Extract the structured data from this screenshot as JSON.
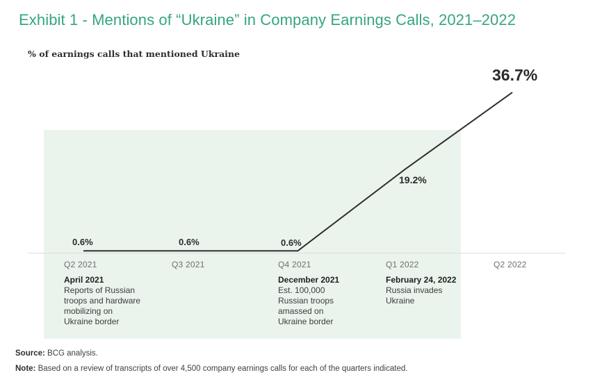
{
  "exhibit": {
    "title": "Exhibit 1 - Mentions of “Ukraine” in Company Earnings Calls, 2021–2022",
    "subtitle": "% of earnings calls that mentioned Ukraine"
  },
  "chart_data": {
    "type": "line",
    "categories": [
      "Q2 2021",
      "Q3 2021",
      "Q4 2021",
      "Q1 2022",
      "Q2 2022"
    ],
    "values": [
      0.6,
      0.6,
      0.6,
      19.2,
      36.7
    ],
    "value_labels": [
      "0.6%",
      "0.6%",
      "0.6%",
      "19.2%",
      "36.7%"
    ],
    "title": "Mentions of “Ukraine” in Company Earnings Calls, 2021–2022",
    "ylabel": "% of earnings calls that mentioned Ukraine",
    "xlabel": "",
    "ylim": [
      0,
      40
    ],
    "grid": false,
    "legend": "none",
    "annotations": [
      {
        "category": "Q2 2021",
        "heading": "April 2021",
        "body": "Reports of Russian\ntroops and hardware\nmobilizing on\nUkraine border"
      },
      {
        "category": "Q4 2021",
        "heading": "December 2021",
        "body": "Est. 100,000\nRussian troops\namassed on\nUkraine border"
      },
      {
        "category": "Q1 2022",
        "heading": "February 24, 2022",
        "body": "Russia invades\nUkraine"
      }
    ]
  },
  "footer": {
    "source_label": "Source:",
    "source_text": " BCG analysis.",
    "note_label": "Note:",
    "note_text": " Based on a review of transcripts of over 4,500 company earnings calls for each of the quarters indicated."
  },
  "colors": {
    "title_green": "#35a57f",
    "band_green": "#eaf4ed",
    "line_dark": "#2e2e2e",
    "tick_gray": "#6e6e6e",
    "axis_gray": "#dcdcdc",
    "text_dark": "#3c3c3c"
  }
}
